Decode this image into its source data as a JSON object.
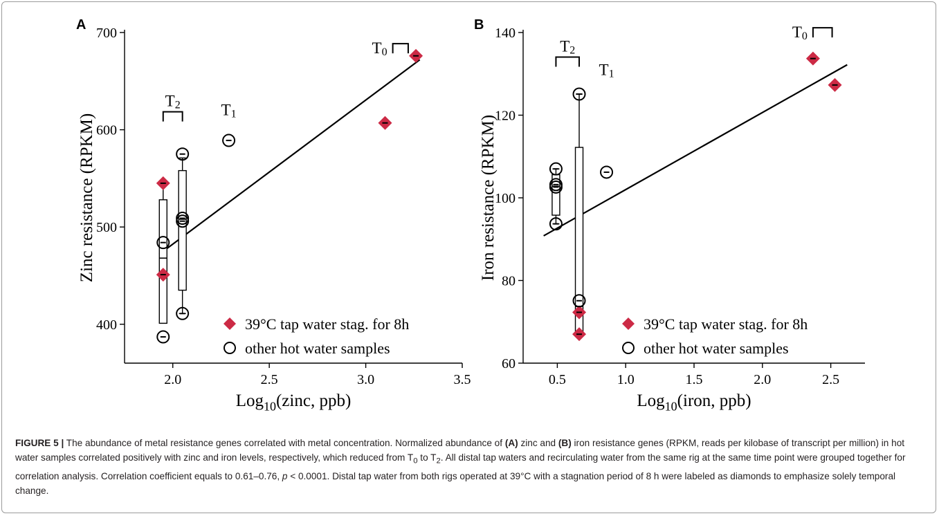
{
  "chart_data": [
    {
      "panel": "A",
      "type": "scatter",
      "xlabel": "Log10(zinc, ppb)",
      "ylabel": "Zinc resistance (RPKM)",
      "xlim": [
        1.75,
        3.5
      ],
      "ylim": [
        360,
        700
      ],
      "x_ticks": [
        "2.0",
        "2.5",
        "3.0",
        "3.5"
      ],
      "y_ticks": [
        "400",
        "500",
        "600",
        "700"
      ],
      "grid": false,
      "legend_position": "bottom-right",
      "series": [
        {
          "name": "39°C tap water stag. for 8h",
          "marker": "diamond",
          "color": "#cc2a45",
          "points": [
            {
              "x": 1.95,
              "y": 545
            },
            {
              "x": 1.95,
              "y": 451
            },
            {
              "x": 3.1,
              "y": 607
            },
            {
              "x": 3.26,
              "y": 676
            }
          ]
        },
        {
          "name": "other hot water samples",
          "marker": "circle",
          "color": "#000000",
          "points": [
            {
              "x": 1.95,
              "y": 484
            },
            {
              "x": 1.95,
              "y": 387
            },
            {
              "x": 2.05,
              "y": 575
            },
            {
              "x": 2.05,
              "y": 509
            },
            {
              "x": 2.05,
              "y": 506
            },
            {
              "x": 2.05,
              "y": 411
            },
            {
              "x": 2.29,
              "y": 589
            }
          ]
        }
      ],
      "boxplots": [
        {
          "x": 1.95,
          "whisker_low": 401,
          "q1": 401,
          "median": 468,
          "q3": 528,
          "whisker_high": 542
        },
        {
          "x": 2.05,
          "whisker_low": 411,
          "q1": 435,
          "median": 508,
          "q3": 558,
          "whisker_high": 571
        }
      ],
      "fit_line": {
        "x": [
          1.93,
          3.28
        ],
        "y": [
          472,
          672
        ]
      },
      "annotations": [
        {
          "label": "T",
          "sub": "0",
          "x": 3.09,
          "y": 670,
          "bracket": [
            3.14,
            3.22
          ]
        },
        {
          "label": "T",
          "sub": "2",
          "x": 2.0,
          "y": 600,
          "bracket": [
            1.95,
            2.05
          ]
        },
        {
          "label": "T",
          "sub": "1",
          "x": 2.29,
          "y": 615
        }
      ]
    },
    {
      "panel": "B",
      "type": "scatter",
      "xlabel": "Log10(iron, ppb)",
      "ylabel": "Iron resistance (RPKM)",
      "xlim": [
        0.25,
        2.75
      ],
      "ylim": [
        60,
        140
      ],
      "x_ticks": [
        "0.5",
        "1.0",
        "1.5",
        "2.0",
        "2.5"
      ],
      "y_ticks": [
        "60",
        "80",
        "100",
        "120",
        "140"
      ],
      "grid": false,
      "legend_position": "bottom-right",
      "series": [
        {
          "name": "39°C tap water stag. for 8h",
          "marker": "diamond",
          "color": "#cc2a45",
          "points": [
            {
              "x": 2.37,
              "y": 133.7
            },
            {
              "x": 2.53,
              "y": 127.3
            },
            {
              "x": 0.66,
              "y": 72.3
            },
            {
              "x": 0.66,
              "y": 67
            }
          ]
        },
        {
          "name": "other hot water samples",
          "marker": "circle",
          "color": "#000000",
          "points": [
            {
              "x": 0.49,
              "y": 107
            },
            {
              "x": 0.49,
              "y": 103.2
            },
            {
              "x": 0.49,
              "y": 102.6
            },
            {
              "x": 0.49,
              "y": 93.7
            },
            {
              "x": 0.66,
              "y": 125.1
            },
            {
              "x": 0.66,
              "y": 75.1
            },
            {
              "x": 0.86,
              "y": 106.2
            }
          ]
        }
      ],
      "boxplots": [
        {
          "x": 0.49,
          "whisker_low": 93.7,
          "q1": 95.8,
          "median": 102.8,
          "q3": 105.6,
          "whisker_high": 107
        },
        {
          "x": 0.66,
          "whisker_low": 67.6,
          "q1": 67.6,
          "median": 73.7,
          "q3": 112.2,
          "whisker_high": 125.1
        }
      ],
      "fit_line": {
        "x": [
          0.4,
          2.62
        ],
        "y": [
          90.8,
          132.2
        ]
      },
      "annotations": [
        {
          "label": "T",
          "sub": "0",
          "x": 2.37,
          "y": 136.8,
          "bracket": [
            2.37,
            2.51
          ]
        },
        {
          "label": "T",
          "sub": "2",
          "x": 0.58,
          "y": 129.7,
          "bracket": [
            0.49,
            0.66
          ]
        },
        {
          "label": "T",
          "sub": "1",
          "x": 0.86,
          "y": 129.7
        }
      ]
    }
  ],
  "caption": {
    "lead": "FIGURE 5 |",
    "s1": " The abundance of metal resistance genes correlated with metal concentration. Normalized abundance of ",
    "a": "(A)",
    "s2": " zinc and ",
    "b": "(B)",
    "s3": " iron resistance genes (RPKM, reads per kilobase of transcript per million) in hot water samples correlated positively with zinc and iron levels, respectively, which reduced from T",
    "sub0": "0",
    "s4": " to T",
    "sub2": "2",
    "s5": ". All distal tap waters and recirculating water from the same rig at the same time point were grouped together for correlation analysis. Correlation coefficient equals to 0.61–0.76, ",
    "p": "p",
    "s6": " < 0.0001. Distal tap water from both rigs operated at 39°C with a stagnation period of 8 h were labeled as diamonds to emphasize solely temporal change."
  }
}
